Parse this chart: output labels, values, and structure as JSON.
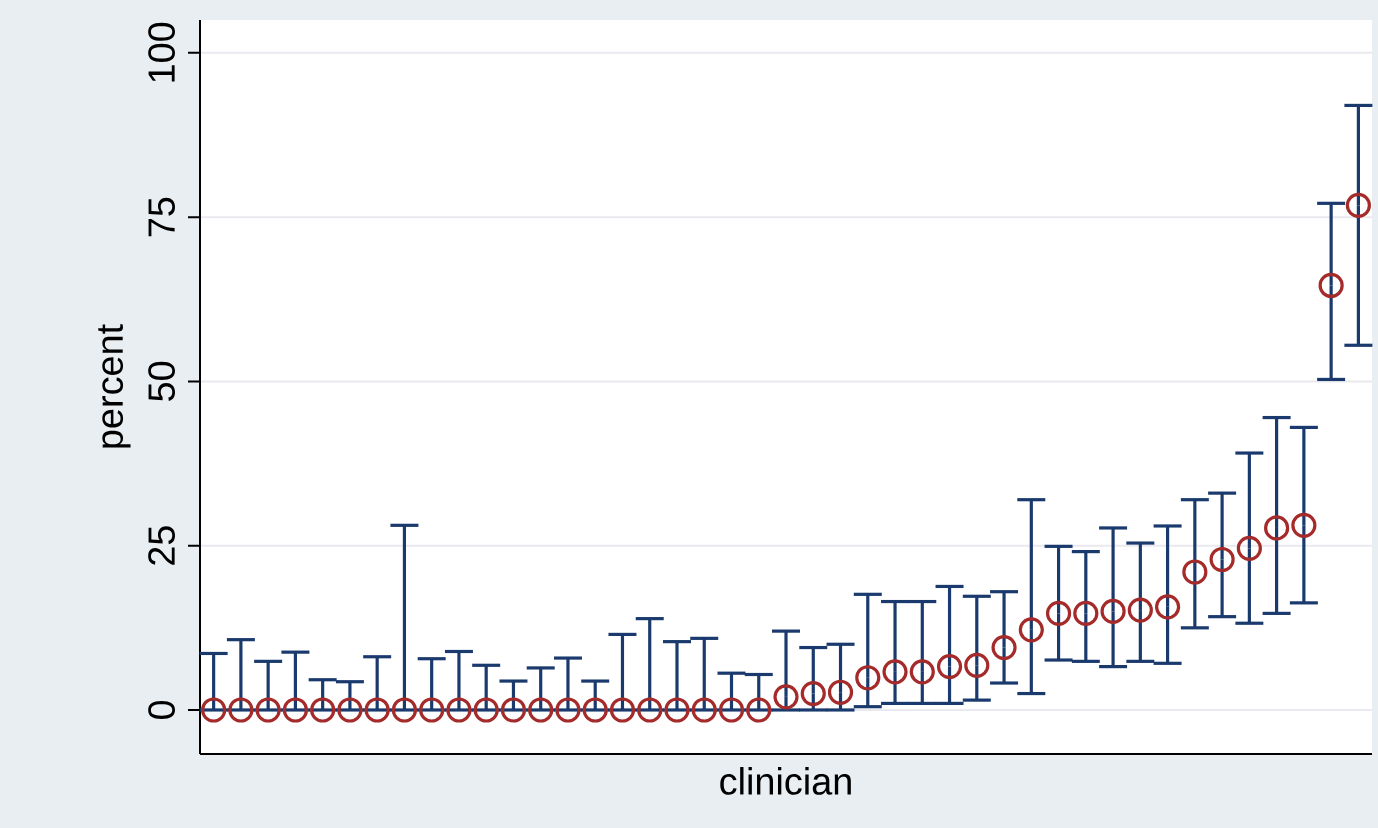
{
  "chart_data": {
    "type": "scatter",
    "xlabel": "clinician",
    "ylabel": "percent",
    "categories": [
      null,
      null,
      null,
      null,
      null,
      null,
      null,
      null,
      null,
      null,
      null,
      null,
      null,
      null,
      null,
      null,
      null,
      null,
      null,
      null,
      null,
      null,
      null,
      null,
      null,
      null,
      null,
      null,
      null,
      null,
      null,
      null,
      null,
      null,
      null,
      null,
      null,
      null,
      null,
      null,
      null,
      null,
      null
    ],
    "values": [
      0,
      0,
      0,
      0,
      0,
      0,
      0,
      0,
      0,
      0,
      0,
      0,
      0,
      0,
      0,
      0,
      0,
      0,
      0,
      0,
      0,
      2.0,
      2.5,
      2.7,
      4.9,
      5.8,
      5.8,
      6.6,
      6.8,
      9.5,
      12.2,
      14.7,
      14.7,
      15.0,
      15.2,
      15.7,
      21,
      22.9,
      24.6,
      27.7,
      28.1,
      64.6,
      76.8
    ],
    "errors": [
      [
        0,
        8.6
      ],
      [
        0,
        10.7
      ],
      [
        0,
        7.4
      ],
      [
        0,
        8.8
      ],
      [
        0,
        4.6
      ],
      [
        0,
        4.3
      ],
      [
        0,
        8.1
      ],
      [
        0,
        28.1
      ],
      [
        0,
        7.8
      ],
      [
        0,
        8.9
      ],
      [
        0,
        6.8
      ],
      [
        0,
        4.4
      ],
      [
        0,
        6.4
      ],
      [
        0,
        7.9
      ],
      [
        0,
        4.4
      ],
      [
        0,
        11.5
      ],
      [
        0,
        13.9
      ],
      [
        0,
        10.4
      ],
      [
        0,
        10.9
      ],
      [
        0,
        5.6
      ],
      [
        0,
        5.4
      ],
      [
        0,
        12.0
      ],
      [
        0,
        9.5
      ],
      [
        0,
        10
      ],
      [
        0.5,
        17.6
      ],
      [
        1,
        16.5
      ],
      [
        1,
        16.5
      ],
      [
        1,
        18.8
      ],
      [
        1.5,
        17.3
      ],
      [
        4.1,
        18
      ],
      [
        2.5,
        32
      ],
      [
        7.6,
        24.9
      ],
      [
        7.4,
        24.1
      ],
      [
        6.6,
        27.7
      ],
      [
        7.4,
        25.4
      ],
      [
        7.1,
        28
      ],
      [
        12.5,
        32
      ],
      [
        14.2,
        33
      ],
      [
        13.2,
        39.1
      ],
      [
        14.7,
        44.5
      ],
      [
        16.3,
        43
      ],
      [
        50.3,
        77.1
      ],
      [
        55.5,
        92
      ]
    ],
    "color": "#a52a2a",
    "marker": "circle",
    "ylim": [
      -6.7,
      105
    ],
    "yticks": [
      0,
      25,
      50,
      75,
      100
    ],
    "grid": "y"
  }
}
